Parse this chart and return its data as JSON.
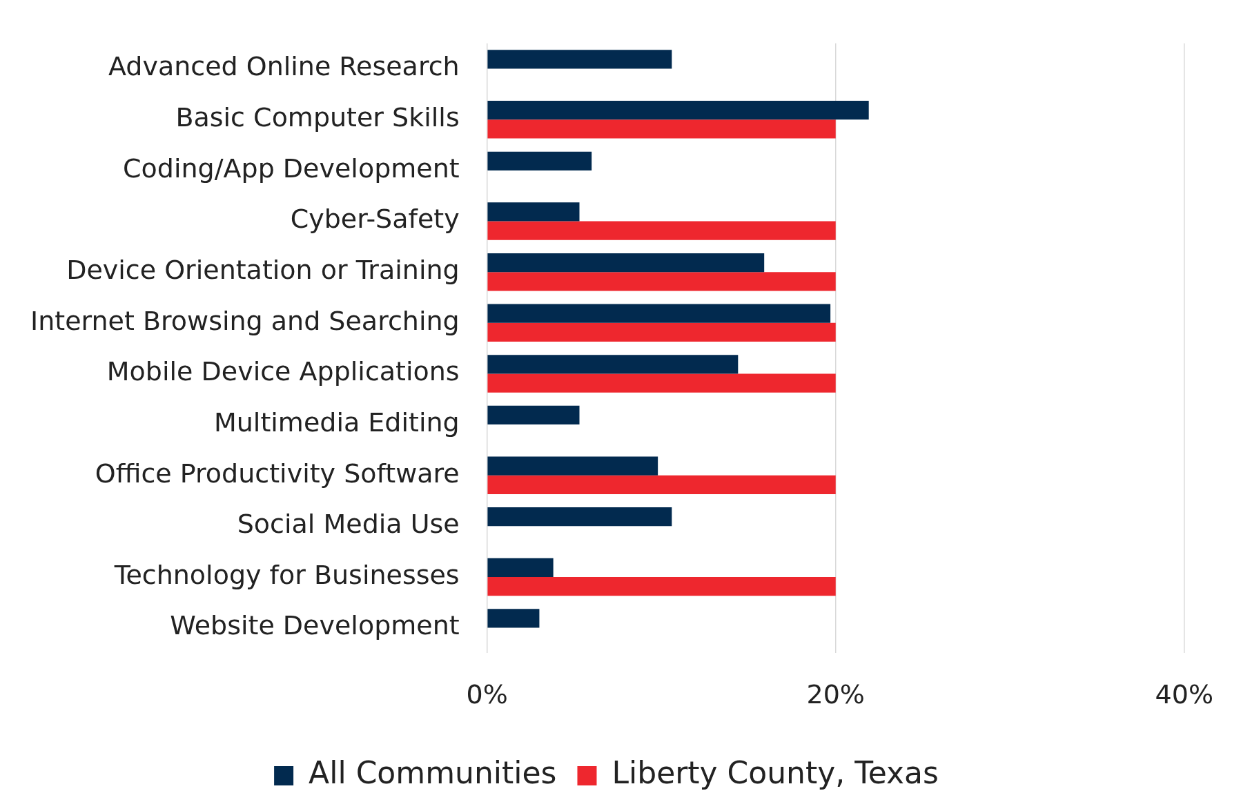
{
  "chart_data": {
    "type": "bar",
    "orientation": "horizontal",
    "categories": [
      "Advanced Online Research",
      "Basic Computer Skills",
      "Coding/App Development",
      "Cyber-Safety",
      "Device Orientation or Training",
      "Internet Browsing and Searching",
      "Mobile Device Applications",
      "Multimedia Editing",
      "Office Productivity Software",
      "Social Media Use",
      "Technology for Businesses",
      "Website Development"
    ],
    "series": [
      {
        "name": "All Communities",
        "color": "#022a4f",
        "values": [
          10.6,
          21.9,
          6.0,
          5.3,
          15.9,
          19.7,
          14.4,
          5.3,
          9.8,
          10.6,
          3.8,
          3.0
        ]
      },
      {
        "name": "Liberty County, Texas",
        "color": "#ee272e",
        "values": [
          null,
          20,
          null,
          20,
          20,
          20,
          20,
          null,
          20,
          null,
          20,
          null
        ]
      }
    ],
    "xlim": [
      0,
      40
    ],
    "xticks": [
      {
        "value": 0,
        "label": "0%"
      },
      {
        "value": 20,
        "label": "20%"
      },
      {
        "value": 40,
        "label": "40%"
      }
    ],
    "grid": "x",
    "legend": "bottom"
  }
}
